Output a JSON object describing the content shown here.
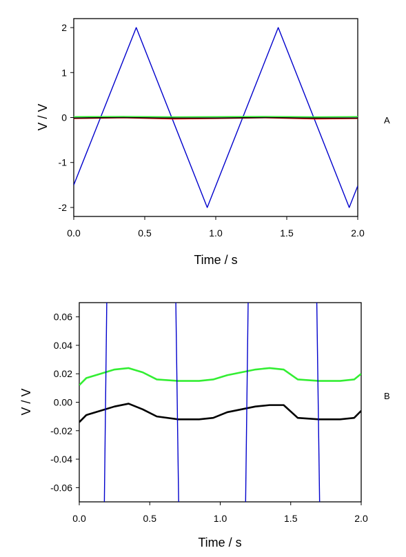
{
  "chart_data": [
    {
      "type": "line",
      "panel_label": "A",
      "xlabel": "Time / s",
      "ylabel": "V / V",
      "xlim": [
        0,
        2
      ],
      "ylim": [
        -2.2,
        2.2
      ],
      "x_ticks": [
        "0.0",
        "0.5",
        "1.0",
        "1.5",
        "2.0"
      ],
      "y_ticks": [
        "-2",
        "-1",
        "0",
        "1",
        "2"
      ],
      "grid": false,
      "series": [
        {
          "color": "#0000cc",
          "x": [
            0,
            0.44,
            0.94,
            1.44,
            1.94,
            2.0
          ],
          "y": [
            -1.5,
            2.0,
            -2.0,
            2.0,
            -2.0,
            -1.52
          ]
        },
        {
          "color": "#ff0000",
          "x": [
            0,
            0.35,
            0.7,
            1.0,
            1.35,
            1.7,
            2.0
          ],
          "y": [
            -0.02,
            -0.005,
            -0.03,
            -0.02,
            -0.005,
            -0.03,
            -0.02
          ]
        },
        {
          "color": "#000000",
          "x": [
            0,
            0.35,
            0.7,
            1.0,
            1.35,
            1.7,
            2.0
          ],
          "y": [
            -0.01,
            0.0,
            -0.012,
            -0.01,
            0.0,
            -0.012,
            -0.01
          ]
        },
        {
          "color": "#33ee33",
          "x": [
            0,
            0.35,
            0.7,
            1.0,
            1.35,
            1.7,
            2.0
          ],
          "y": [
            0.018,
            0.025,
            0.015,
            0.018,
            0.025,
            0.015,
            0.02
          ]
        }
      ]
    },
    {
      "type": "line",
      "panel_label": "B",
      "xlabel": "Time / s",
      "ylabel": "V / V",
      "xlim": [
        0,
        2
      ],
      "ylim": [
        -0.07,
        0.07
      ],
      "x_ticks": [
        "0.0",
        "0.5",
        "1.0",
        "1.5",
        "2.0"
      ],
      "y_ticks": [
        "-0.06",
        "-0.04",
        "-0.02",
        "0.00",
        "0.02",
        "0.04",
        "0.06"
      ],
      "grid": false,
      "series": [
        {
          "color": "#33ee33",
          "x": [
            0,
            0.05,
            0.15,
            0.25,
            0.35,
            0.45,
            0.55,
            0.7,
            0.85,
            0.95,
            1.05,
            1.15,
            1.25,
            1.35,
            1.45,
            1.55,
            1.7,
            1.85,
            1.95,
            2.0
          ],
          "y": [
            0.012,
            0.017,
            0.02,
            0.023,
            0.024,
            0.021,
            0.016,
            0.015,
            0.015,
            0.016,
            0.019,
            0.021,
            0.023,
            0.024,
            0.023,
            0.016,
            0.015,
            0.015,
            0.016,
            0.02
          ]
        },
        {
          "color": "#000000",
          "x": [
            0,
            0.05,
            0.15,
            0.25,
            0.35,
            0.45,
            0.55,
            0.7,
            0.85,
            0.95,
            1.05,
            1.15,
            1.25,
            1.35,
            1.45,
            1.55,
            1.7,
            1.85,
            1.95,
            2.0
          ],
          "y": [
            -0.014,
            -0.009,
            -0.006,
            -0.003,
            -0.001,
            -0.005,
            -0.01,
            -0.012,
            -0.012,
            -0.011,
            -0.007,
            -0.005,
            -0.003,
            -0.002,
            -0.002,
            -0.011,
            -0.012,
            -0.012,
            -0.011,
            -0.006
          ]
        },
        {
          "color": "#0000cc",
          "segments": [
            {
              "x": [
                0.178,
                0.195
              ],
              "y": [
                -0.07,
                0.07
              ]
            },
            {
              "x": [
                0.685,
                0.705
              ],
              "y": [
                0.07,
                -0.07
              ]
            },
            {
              "x": [
                1.18,
                1.198
              ],
              "y": [
                -0.07,
                0.07
              ]
            },
            {
              "x": [
                1.685,
                1.705
              ],
              "y": [
                0.07,
                -0.07
              ]
            }
          ]
        }
      ]
    }
  ]
}
